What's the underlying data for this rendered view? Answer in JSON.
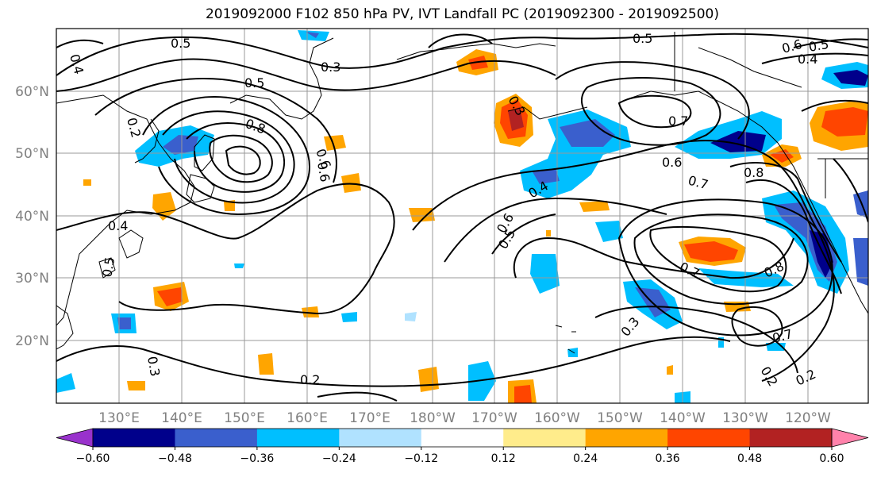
{
  "title": "2019092000 F102 850 hPa PV, IVT Landfall PC (2019092300 - 2019092500)",
  "lat_labels": [
    "60°N",
    "50°N",
    "40°N",
    "30°N",
    "20°N"
  ],
  "lon_labels": [
    "130°E",
    "140°E",
    "150°E",
    "160°E",
    "170°E",
    "180°W",
    "170°W",
    "160°W",
    "150°W",
    "140°W",
    "130°W",
    "120°W"
  ],
  "colorbar": {
    "ticks": [
      "−0.60",
      "−0.48",
      "−0.36",
      "−0.24",
      "−0.12",
      "0.12",
      "0.24",
      "0.36",
      "0.48",
      "0.60"
    ],
    "colors": [
      "#9932CC",
      "#00008B",
      "#3A5FCD",
      "#00BFFF",
      "#B0E2FF",
      "#FFFFFF",
      "#FFEC8B",
      "#FFA500",
      "#FF4500",
      "#B22222",
      "#FF82AB"
    ]
  },
  "contour_labels": [
    "0.5",
    "0.5",
    "0.3",
    "0.5",
    "0.4",
    "0.2",
    "0.8",
    "0.6",
    "0.5",
    "0.6",
    "0.4",
    "0.3",
    "0.6",
    "0.7",
    "0.6",
    "0.7",
    "0.8",
    "0.4",
    "0.6",
    "0.5",
    "0.7",
    "0.8",
    "0.3",
    "0.7",
    "0.2",
    "0.2",
    "0.2",
    "0.3",
    "0.4",
    "0.5"
  ]
}
